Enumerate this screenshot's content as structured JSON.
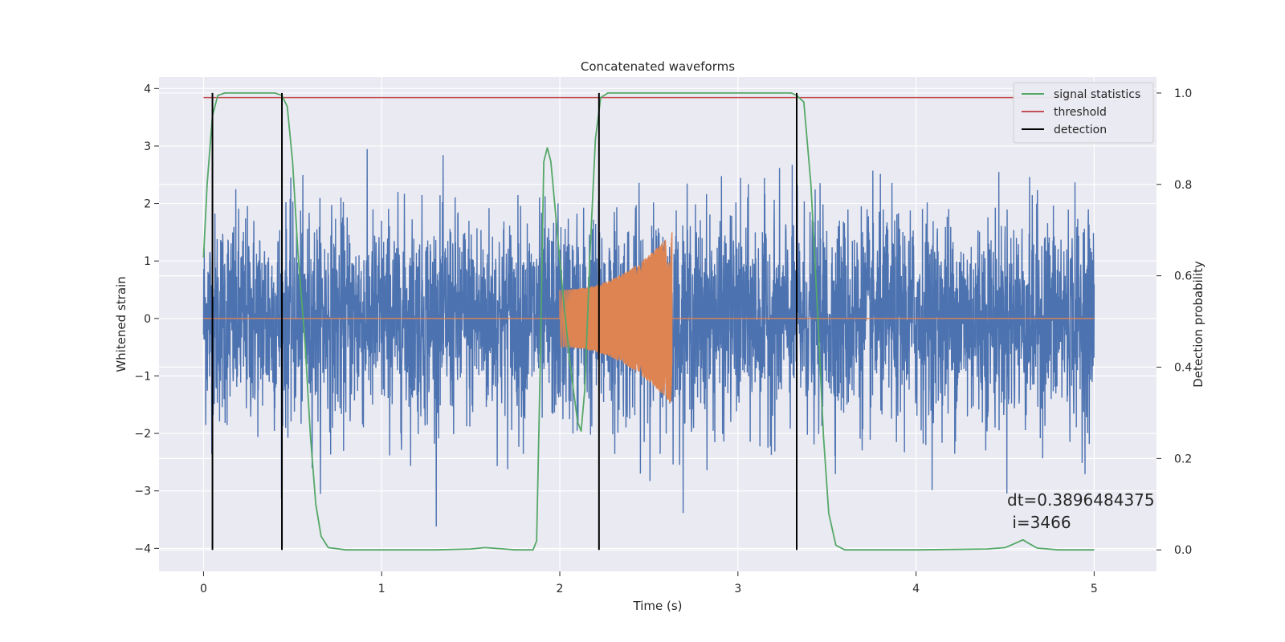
{
  "chart_data": {
    "type": "line",
    "title": "Concatenated waveforms",
    "xlabel": "Time (s)",
    "ylabel": "Whitened strain",
    "y2label": "Detection probability",
    "xlim": [
      -0.25,
      5.35
    ],
    "ylim": [
      -4.4,
      4.2
    ],
    "y2lim": [
      -0.047,
      1.035
    ],
    "xticks": [
      0,
      1,
      2,
      3,
      4,
      5
    ],
    "yticks": [
      -4,
      -3,
      -2,
      -1,
      0,
      1,
      2,
      3,
      4
    ],
    "y2ticks": [
      0.0,
      0.2,
      0.4,
      0.6,
      0.8,
      1.0
    ],
    "y2ticklabels": [
      "0.0",
      "0.2",
      "0.4",
      "0.6",
      "0.8",
      "1.0"
    ],
    "grid": true,
    "legend_position": "top-right",
    "background": "#eaeaf2",
    "series": [
      {
        "name": "",
        "axis": "left",
        "color": "#4c72b0",
        "description": "whitened noise strain, roughly zero-mean with std about 0.9, spikes up to about 3.8",
        "x_range": [
          0,
          5
        ],
        "y_envelope": [
          -3.9,
          3.8
        ]
      },
      {
        "name": "",
        "axis": "left",
        "color": "#dd8452",
        "description": "injected chirp waveform, zero outside 2.0-2.63 s",
        "x_range": [
          0,
          5
        ],
        "chirp_start": 2.0,
        "chirp_end": 2.63,
        "amplitude_start": 0.5,
        "amplitude_end": 1.5
      },
      {
        "name": "signal statistics",
        "axis": "right",
        "color": "#55a868",
        "x": [
          0.0,
          0.02,
          0.05,
          0.08,
          0.12,
          0.2,
          0.3,
          0.4,
          0.44,
          0.47,
          0.5,
          0.53,
          0.57,
          0.6,
          0.63,
          0.66,
          0.7,
          0.8,
          1.0,
          1.3,
          1.5,
          1.58,
          1.65,
          1.75,
          1.8,
          1.85,
          1.87,
          1.89,
          1.91,
          1.93,
          1.95,
          1.98,
          2.02,
          2.06,
          2.1,
          2.12,
          2.14,
          2.17,
          2.2,
          2.23,
          2.27,
          2.35,
          2.6,
          3.0,
          3.3,
          3.33,
          3.37,
          3.41,
          3.45,
          3.48,
          3.51,
          3.55,
          3.6,
          3.8,
          4.0,
          4.2,
          4.4,
          4.5,
          4.56,
          4.6,
          4.63,
          4.68,
          4.8,
          5.0
        ],
        "y": [
          0.64,
          0.8,
          0.95,
          0.995,
          1.0,
          1.0,
          1.0,
          1.0,
          0.995,
          0.97,
          0.85,
          0.65,
          0.45,
          0.25,
          0.1,
          0.03,
          0.005,
          0.0,
          0.0,
          0.0,
          0.002,
          0.005,
          0.003,
          0.0,
          0.0,
          0.0,
          0.02,
          0.4,
          0.85,
          0.88,
          0.85,
          0.72,
          0.55,
          0.4,
          0.28,
          0.26,
          0.35,
          0.65,
          0.9,
          0.99,
          1.0,
          1.0,
          1.0,
          1.0,
          1.0,
          0.995,
          0.98,
          0.8,
          0.5,
          0.25,
          0.08,
          0.01,
          0.0,
          0.0,
          0.0,
          0.001,
          0.002,
          0.005,
          0.015,
          0.022,
          0.015,
          0.004,
          0.0,
          0.0
        ]
      },
      {
        "name": "threshold",
        "axis": "right",
        "color": "#c44e52",
        "x": [
          0,
          5
        ],
        "y": [
          0.99,
          0.99
        ]
      },
      {
        "name": "detection",
        "axis": "right",
        "color": "#000000",
        "vlines": [
          0.05,
          0.44,
          2.22,
          3.33
        ],
        "ymin": 0.0,
        "ymax": 1.0
      }
    ],
    "annotations": [
      {
        "text": "dt=0.3896484375",
        "x": 4.5,
        "y2": 0.1
      },
      {
        "text": " i=3466",
        "x": 4.5,
        "y2": 0.05
      }
    ]
  }
}
